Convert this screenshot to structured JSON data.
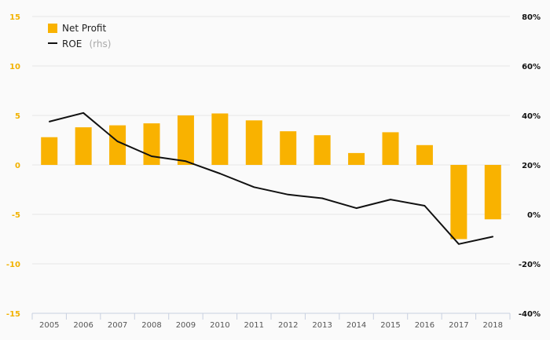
{
  "chart_data": {
    "type": "bar",
    "categories": [
      "2005",
      "2006",
      "2007",
      "2008",
      "2009",
      "2010",
      "2011",
      "2012",
      "2013",
      "2014",
      "2015",
      "2016",
      "2017",
      "2018"
    ],
    "series": [
      {
        "name": "Net Profit",
        "type": "bar",
        "axis": "left",
        "color": "#f9b200",
        "values": [
          2.8,
          3.8,
          4.0,
          4.2,
          5.0,
          5.2,
          4.5,
          3.4,
          3.0,
          1.2,
          3.3,
          2.0,
          -7.5,
          -5.5
        ]
      },
      {
        "name": "ROE",
        "legend_suffix": "(rhs)",
        "type": "line",
        "axis": "right",
        "color": "#111111",
        "values": [
          37.5,
          41.0,
          29.5,
          23.5,
          21.5,
          16.5,
          11.0,
          8.0,
          6.5,
          2.5,
          6.0,
          3.5,
          -12.0,
          -9.0
        ]
      }
    ],
    "y_left": {
      "ylim": [
        -15,
        15
      ],
      "ticks": [
        "-15",
        "-10",
        "-5",
        "0",
        "5",
        "10",
        "15"
      ],
      "tick_values": [
        -15,
        -10,
        -5,
        0,
        5,
        10,
        15
      ]
    },
    "y_right": {
      "ylim": [
        -40,
        80
      ],
      "ticks": [
        "-40%",
        "-20%",
        "0%",
        "20%",
        "40%",
        "60%",
        "80%"
      ],
      "tick_values": [
        -40,
        -20,
        0,
        20,
        40,
        60,
        80
      ]
    },
    "grid": true,
    "legend_position": "top-left"
  },
  "colors": {
    "bar": "#f9b200",
    "line": "#111111",
    "left_axis_text": "#f2b200",
    "right_axis_text": "#111111",
    "grid": "#e6e6e6",
    "x_axis": "#c8d0e0"
  }
}
